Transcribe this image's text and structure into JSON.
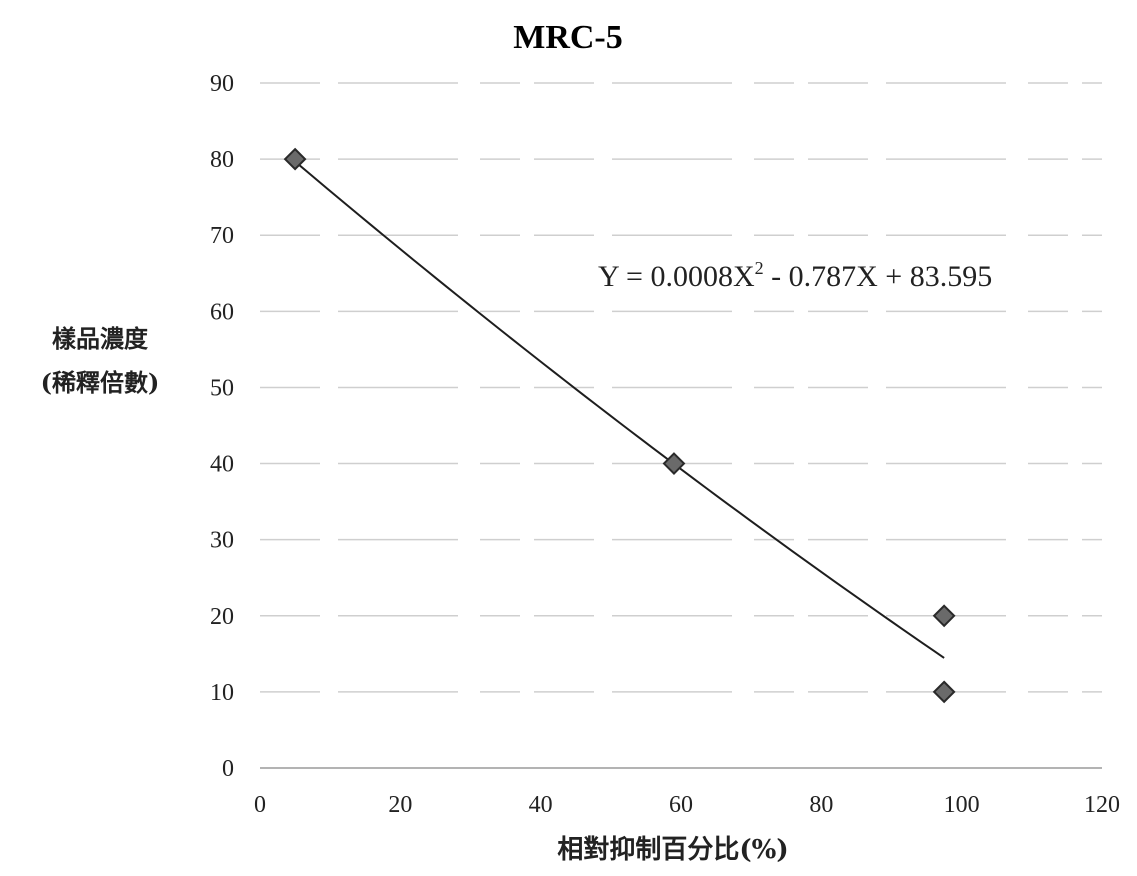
{
  "chart_data": {
    "type": "scatter",
    "title": "MRC-5",
    "xlabel": "相對抑制百分比(%)",
    "ylabel_lines": [
      "樣品濃度",
      "(稀釋倍數)"
    ],
    "x_ticks": [
      "0",
      "20",
      "40",
      "60",
      "80",
      "100",
      "120"
    ],
    "y_ticks": [
      "0",
      "10",
      "20",
      "30",
      "40",
      "50",
      "60",
      "70",
      "80",
      "90"
    ],
    "xlim": [
      0,
      120
    ],
    "ylim": [
      0,
      90
    ],
    "grid": "horizontal",
    "points": [
      {
        "x": 5,
        "y": 80
      },
      {
        "x": 59,
        "y": 40
      },
      {
        "x": 97.5,
        "y": 20
      },
      {
        "x": 97.5,
        "y": 10
      }
    ],
    "trendline": {
      "type": "polynomial-2",
      "coefficients": {
        "a": 0.0008,
        "b": -0.787,
        "c": 83.595
      },
      "x_range": [
        5,
        97.5
      ],
      "equation_parts": {
        "prefix": "Y = 0.0008X",
        "superscript": "2",
        "suffix": " - 0.787X + 83.595"
      }
    },
    "colors": {
      "marker": "#6a6a6a",
      "line": "#1e1e1e",
      "grid": "#cfcfcf"
    }
  }
}
